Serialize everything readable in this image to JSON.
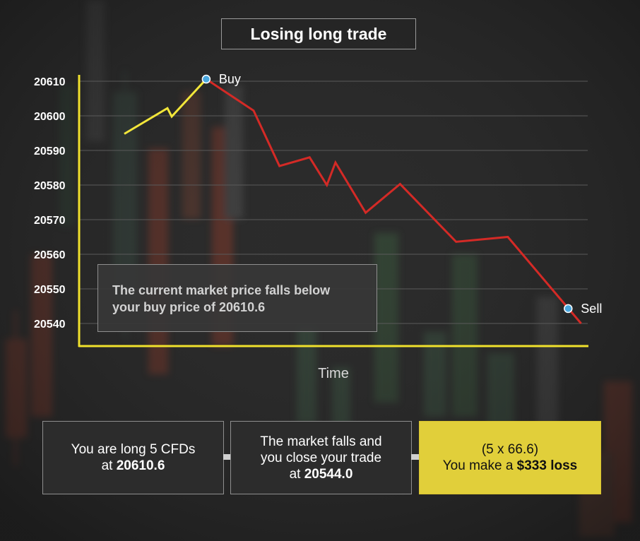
{
  "chart_data": {
    "type": "line",
    "title": "Losing long trade",
    "xlabel": "Time",
    "ylabel": "",
    "ylim": [
      20535,
      20612
    ],
    "yticks": [
      20610,
      20600,
      20590,
      20580,
      20570,
      20560,
      20550,
      20540
    ],
    "grid": true,
    "series": [
      {
        "color": "#f2e63a",
        "x": [
          0,
          1,
          1.1,
          1.9
        ],
        "y": [
          20594.8,
          20602.2,
          20599.8,
          20610.6
        ]
      },
      {
        "color": "#d42a26",
        "x": [
          1.9,
          3,
          3.6,
          4.3,
          4.7,
          4.9,
          5.6,
          6.4,
          7.7,
          8.9,
          10.6
        ],
        "y": [
          20610.6,
          20601.5,
          20585.5,
          20588,
          20580,
          20586.5,
          20572,
          20580.3,
          20563.6,
          20565,
          20540
        ]
      }
    ],
    "annotations": [
      {
        "label": "Buy",
        "x": 1.9,
        "y": 20610.6
      },
      {
        "label": "Sell",
        "x": 10.3,
        "y": 20544.3
      }
    ],
    "colors": {
      "axis": "#f0e12c",
      "buy_line": "#f2e63a",
      "sell_line": "#d42a26",
      "marker": "#4aa8e0",
      "highlight_box": "#e1cf3a"
    }
  },
  "callout": {
    "line1": "The current market price falls below",
    "line2": "your buy price of 20610.6"
  },
  "steps": [
    {
      "line1": "You are long 5 CFDs",
      "pre": "at ",
      "bold": "20610.6"
    },
    {
      "line1": "The market falls and",
      "line2": "you close your trade",
      "pre": "at ",
      "bold": "20544.0"
    },
    {
      "line1": "(5 x 66.6)",
      "pre": "You make a ",
      "bold": "$333 loss"
    }
  ]
}
